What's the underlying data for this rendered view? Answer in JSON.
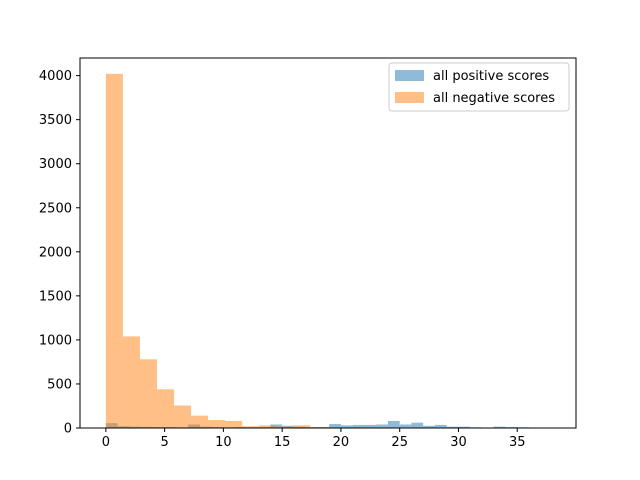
{
  "chart_data": {
    "type": "bar",
    "title": "",
    "xlabel": "",
    "ylabel": "",
    "xlim": [
      -2.2,
      40.0
    ],
    "ylim": [
      0,
      4200
    ],
    "x_ticks": [
      0,
      5,
      10,
      15,
      20,
      25,
      30,
      35
    ],
    "y_ticks": [
      0,
      500,
      1000,
      1500,
      2000,
      2500,
      3000,
      3500,
      4000
    ],
    "grid": false,
    "legend_position": "top-right",
    "series": [
      {
        "name": "all positive scores",
        "color": "#1f77b4",
        "opacity": 0.5,
        "bins": [
          {
            "x0": 0.0,
            "x1": 1.0,
            "value": 55
          },
          {
            "x0": 1.0,
            "x1": 2.0,
            "value": 20
          },
          {
            "x0": 2.0,
            "x1": 3.0,
            "value": 15
          },
          {
            "x0": 3.0,
            "x1": 4.0,
            "value": 12
          },
          {
            "x0": 4.0,
            "x1": 5.0,
            "value": 10
          },
          {
            "x0": 5.0,
            "x1": 6.0,
            "value": 10
          },
          {
            "x0": 6.0,
            "x1": 7.0,
            "value": 8
          },
          {
            "x0": 7.0,
            "x1": 8.0,
            "value": 40
          },
          {
            "x0": 8.0,
            "x1": 9.0,
            "value": 15
          },
          {
            "x0": 9.0,
            "x1": 10.0,
            "value": 10
          },
          {
            "x0": 10.0,
            "x1": 11.0,
            "value": 8
          },
          {
            "x0": 11.0,
            "x1": 12.0,
            "value": 10
          },
          {
            "x0": 12.0,
            "x1": 13.0,
            "value": 8
          },
          {
            "x0": 13.0,
            "x1": 14.0,
            "value": 10
          },
          {
            "x0": 14.0,
            "x1": 15.0,
            "value": 40
          },
          {
            "x0": 15.0,
            "x1": 16.0,
            "value": 25
          },
          {
            "x0": 16.0,
            "x1": 17.0,
            "value": 15
          },
          {
            "x0": 17.0,
            "x1": 18.0,
            "value": 10
          },
          {
            "x0": 18.0,
            "x1": 19.0,
            "value": 10
          },
          {
            "x0": 19.0,
            "x1": 20.0,
            "value": 45
          },
          {
            "x0": 20.0,
            "x1": 21.0,
            "value": 30
          },
          {
            "x0": 21.0,
            "x1": 22.0,
            "value": 35
          },
          {
            "x0": 22.0,
            "x1": 23.0,
            "value": 35
          },
          {
            "x0": 23.0,
            "x1": 24.0,
            "value": 40
          },
          {
            "x0": 24.0,
            "x1": 25.0,
            "value": 80
          },
          {
            "x0": 25.0,
            "x1": 26.0,
            "value": 40
          },
          {
            "x0": 26.0,
            "x1": 27.0,
            "value": 60
          },
          {
            "x0": 27.0,
            "x1": 28.0,
            "value": 25
          },
          {
            "x0": 28.0,
            "x1": 29.0,
            "value": 35
          },
          {
            "x0": 29.0,
            "x1": 30.0,
            "value": 15
          },
          {
            "x0": 30.0,
            "x1": 31.0,
            "value": 15
          },
          {
            "x0": 31.0,
            "x1": 32.0,
            "value": 8
          },
          {
            "x0": 32.0,
            "x1": 33.0,
            "value": 5
          },
          {
            "x0": 33.0,
            "x1": 34.0,
            "value": 15
          },
          {
            "x0": 34.0,
            "x1": 35.0,
            "value": 10
          },
          {
            "x0": 35.0,
            "x1": 36.0,
            "value": 8
          },
          {
            "x0": 36.0,
            "x1": 37.0,
            "value": 5
          },
          {
            "x0": 37.0,
            "x1": 38.0,
            "value": 3
          }
        ]
      },
      {
        "name": "all negative scores",
        "color": "#ff7f0e",
        "opacity": 0.5,
        "bins": [
          {
            "x0": 0.0,
            "x1": 1.45,
            "value": 4020
          },
          {
            "x0": 1.45,
            "x1": 2.9,
            "value": 1040
          },
          {
            "x0": 2.9,
            "x1": 4.35,
            "value": 780
          },
          {
            "x0": 4.35,
            "x1": 5.8,
            "value": 440
          },
          {
            "x0": 5.8,
            "x1": 7.25,
            "value": 255
          },
          {
            "x0": 7.25,
            "x1": 8.7,
            "value": 140
          },
          {
            "x0": 8.7,
            "x1": 10.15,
            "value": 90
          },
          {
            "x0": 10.15,
            "x1": 11.6,
            "value": 80
          },
          {
            "x0": 11.6,
            "x1": 13.05,
            "value": 20
          },
          {
            "x0": 13.05,
            "x1": 14.5,
            "value": 30
          },
          {
            "x0": 14.5,
            "x1": 15.95,
            "value": 15
          },
          {
            "x0": 15.95,
            "x1": 17.4,
            "value": 30
          },
          {
            "x0": 17.4,
            "x1": 18.85,
            "value": 10
          },
          {
            "x0": 18.85,
            "x1": 20.3,
            "value": 10
          },
          {
            "x0": 20.3,
            "x1": 21.75,
            "value": 10
          },
          {
            "x0": 21.75,
            "x1": 23.2,
            "value": 5
          },
          {
            "x0": 23.2,
            "x1": 24.65,
            "value": 5
          },
          {
            "x0": 24.65,
            "x1": 26.1,
            "value": 5
          },
          {
            "x0": 26.1,
            "x1": 27.55,
            "value": 5
          },
          {
            "x0": 27.55,
            "x1": 29.0,
            "value": 3
          },
          {
            "x0": 29.0,
            "x1": 30.45,
            "value": 3
          }
        ]
      }
    ]
  }
}
